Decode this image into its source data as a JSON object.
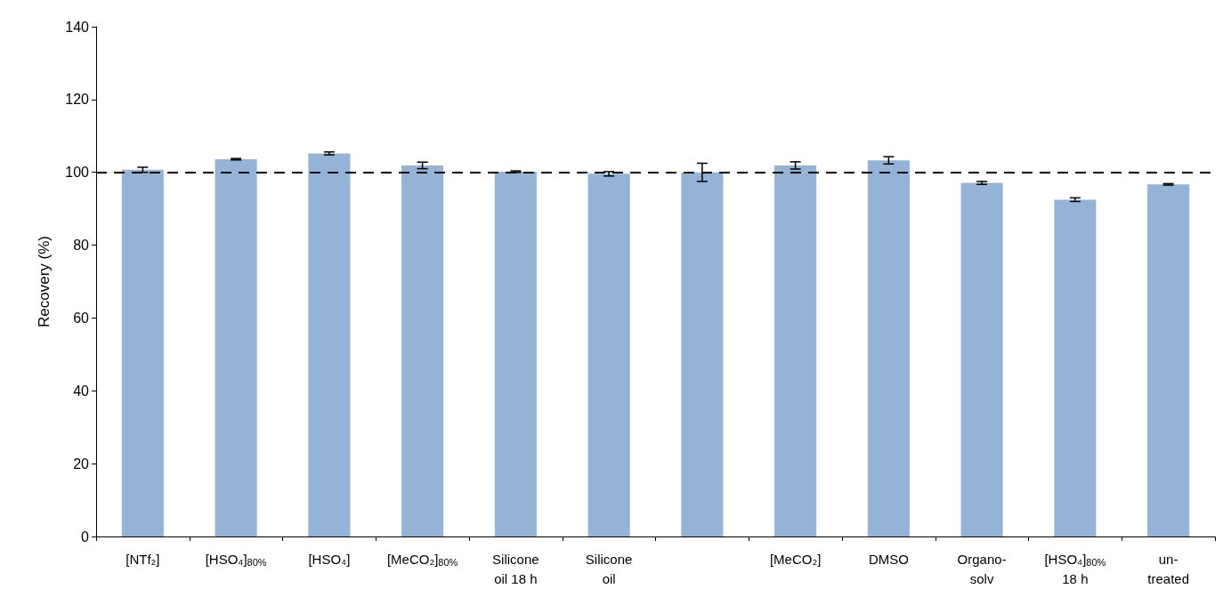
{
  "chart_data": {
    "type": "bar",
    "ylabel": "Recovery (%)",
    "categories": [
      "[NTf₂]",
      "[HSO₄]$_{80%}$",
      "[HSO₄]",
      "[MeCO₂]$_{80%}$",
      "Silicone\noil 18 h",
      "Silicone\noil",
      null,
      "[MeCO₂]",
      "DMSO",
      "Organo-\nsolv",
      "[HSO₄]$_{80%}$\n18 h",
      "un-\ntreated"
    ],
    "values": [
      100.7,
      103.6,
      105.2,
      101.9,
      100.2,
      99.6,
      100.0,
      101.9,
      103.3,
      97.1,
      92.5,
      96.7
    ],
    "errors": [
      0.7,
      0.2,
      0.4,
      0.9,
      0.2,
      0.6,
      2.5,
      1.0,
      1.0,
      0.4,
      0.5,
      0.2
    ],
    "color": "#95b3d7",
    "ylim": [
      0,
      140
    ],
    "yticks": [
      0,
      20,
      40,
      60,
      80,
      100,
      120,
      140
    ],
    "grid": false,
    "ref_lines": [
      {
        "axis": "y",
        "value": 100,
        "color": "#000000",
        "line_style": "dashed"
      }
    ]
  }
}
